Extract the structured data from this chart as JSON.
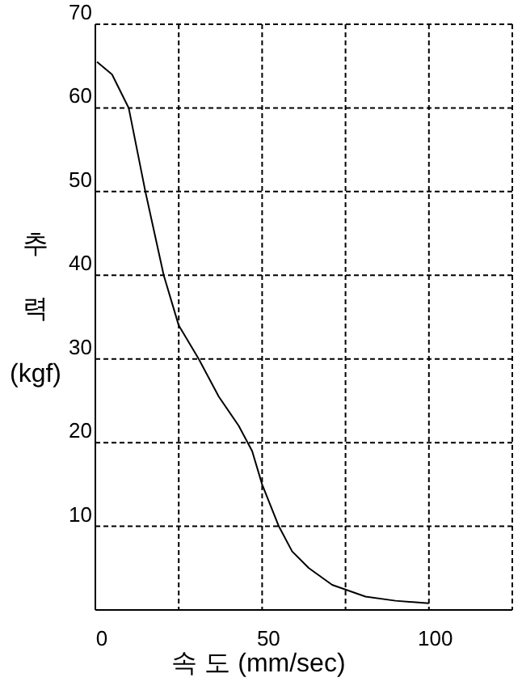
{
  "chart_data": {
    "type": "line",
    "xlabel": "속 도 (mm/sec)",
    "ylabel": "추 력 (kgf)",
    "x": [
      0.5,
      5,
      10,
      15,
      20.5,
      25,
      31,
      37,
      43,
      47,
      50,
      55,
      59,
      64,
      71,
      81,
      90,
      100
    ],
    "series": [
      {
        "color": "#000000",
        "values": [
          65.5,
          64,
          60,
          50,
          40,
          34,
          30,
          25.5,
          22,
          19,
          15,
          10,
          7,
          5,
          3,
          1.6,
          1.1,
          0.8
        ]
      }
    ],
    "xlim": [
      0,
      125
    ],
    "ylim": [
      0,
      70
    ],
    "xticks": [
      0,
      {
        "value": 25,
        "label": null
      },
      50,
      {
        "value": 75,
        "label": null
      },
      100
    ],
    "yticks": [
      10,
      20,
      30,
      40,
      50,
      60,
      70
    ],
    "grid": true,
    "marker": "none",
    "line_style": "solid"
  }
}
